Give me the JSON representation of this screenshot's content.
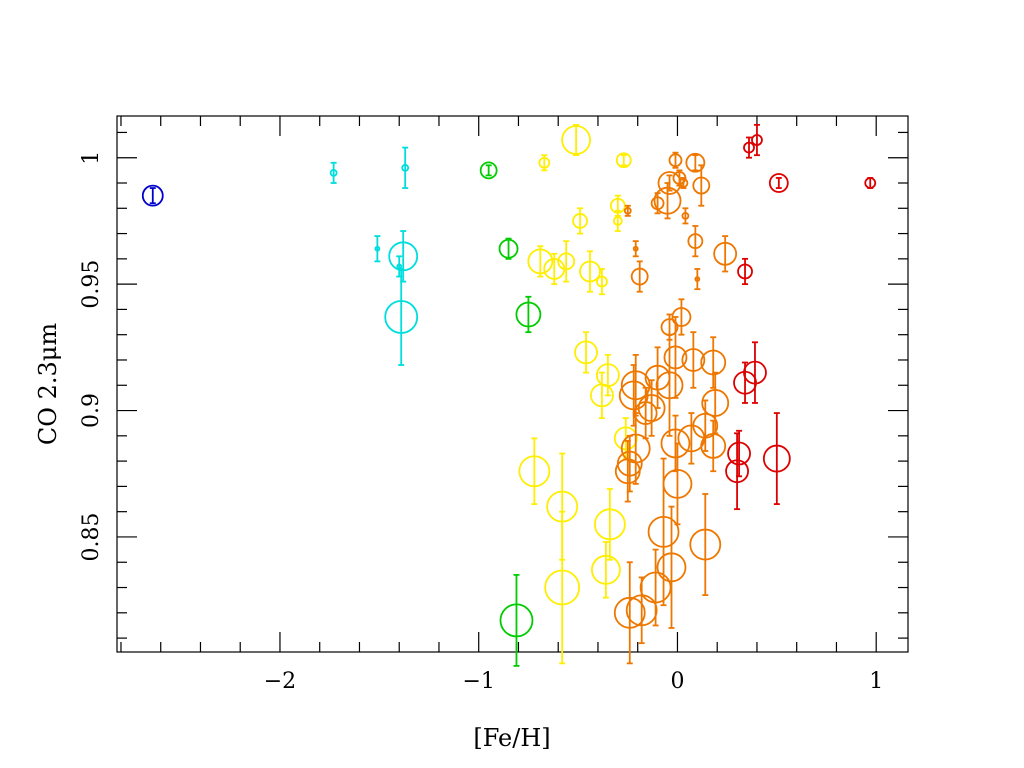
{
  "chart_data": {
    "type": "scatter",
    "xlabel": "[Fe/H]",
    "ylabel": "CO 2.3μm",
    "xlim": [
      -2.82,
      1.16
    ],
    "ylim": [
      0.8045,
      1.0165
    ],
    "x_ticks": [
      -2,
      -1,
      0,
      1
    ],
    "x_tick_labels": [
      "−2",
      "−1",
      "0",
      "1"
    ],
    "y_ticks": [
      0.85,
      0.9,
      0.95,
      1.0
    ],
    "y_tick_labels": [
      "0.85",
      "0.9",
      "0.95",
      "1"
    ],
    "grid": false,
    "legend": "none",
    "colors": {
      "blue": "#0000cc",
      "cyan": "#00dddd",
      "green": "#00cc00",
      "yellow": "#ffee00",
      "orange": "#ee7700",
      "red": "#dd0000"
    },
    "marker": "open-circle, size encodes uncertainty, vertical error bars",
    "points": [
      {
        "x": -2.64,
        "y": 0.985,
        "err": 0.003,
        "s": 10,
        "c": "blue"
      },
      {
        "x": -1.73,
        "y": 0.994,
        "err": 0.004,
        "s": 3,
        "c": "cyan"
      },
      {
        "x": -1.37,
        "y": 0.996,
        "err": 0.008,
        "s": 3,
        "c": "cyan"
      },
      {
        "x": -1.51,
        "y": 0.964,
        "err": 0.005,
        "s": 2,
        "c": "cyan"
      },
      {
        "x": -1.4,
        "y": 0.957,
        "err": 0.004,
        "s": 2,
        "c": "cyan"
      },
      {
        "x": -1.38,
        "y": 0.961,
        "err": 0.01,
        "s": 14,
        "c": "cyan"
      },
      {
        "x": -1.39,
        "y": 0.937,
        "err": 0.019,
        "s": 16,
        "c": "cyan"
      },
      {
        "x": -0.95,
        "y": 0.995,
        "err": 0.002,
        "s": 8,
        "c": "green"
      },
      {
        "x": -0.85,
        "y": 0.964,
        "err": 0.004,
        "s": 9,
        "c": "green"
      },
      {
        "x": -0.75,
        "y": 0.938,
        "err": 0.007,
        "s": 12,
        "c": "green"
      },
      {
        "x": -0.81,
        "y": 0.817,
        "err": 0.018,
        "s": 16,
        "c": "green"
      },
      {
        "x": -0.67,
        "y": 0.998,
        "err": 0.003,
        "s": 5,
        "c": "yellow"
      },
      {
        "x": -0.51,
        "y": 1.007,
        "err": 0.006,
        "s": 14,
        "c": "yellow"
      },
      {
        "x": -0.27,
        "y": 0.999,
        "err": 0.002,
        "s": 7,
        "c": "yellow"
      },
      {
        "x": -0.3,
        "y": 0.981,
        "err": 0.004,
        "s": 7,
        "c": "yellow"
      },
      {
        "x": -0.3,
        "y": 0.975,
        "err": 0.004,
        "s": 4,
        "c": "yellow"
      },
      {
        "x": -0.49,
        "y": 0.975,
        "err": 0.005,
        "s": 7,
        "c": "yellow"
      },
      {
        "x": -0.69,
        "y": 0.959,
        "err": 0.006,
        "s": 12,
        "c": "yellow"
      },
      {
        "x": -0.62,
        "y": 0.956,
        "err": 0.006,
        "s": 10,
        "c": "yellow"
      },
      {
        "x": -0.56,
        "y": 0.959,
        "err": 0.008,
        "s": 8,
        "c": "yellow"
      },
      {
        "x": -0.44,
        "y": 0.955,
        "err": 0.008,
        "s": 10,
        "c": "yellow"
      },
      {
        "x": -0.38,
        "y": 0.951,
        "err": 0.005,
        "s": 5,
        "c": "yellow"
      },
      {
        "x": -0.46,
        "y": 0.923,
        "err": 0.008,
        "s": 11,
        "c": "yellow"
      },
      {
        "x": -0.35,
        "y": 0.914,
        "err": 0.008,
        "s": 11,
        "c": "yellow"
      },
      {
        "x": -0.38,
        "y": 0.906,
        "err": 0.009,
        "s": 11,
        "c": "yellow"
      },
      {
        "x": -0.26,
        "y": 0.889,
        "err": 0.008,
        "s": 11,
        "c": "yellow"
      },
      {
        "x": -0.72,
        "y": 0.876,
        "err": 0.013,
        "s": 15,
        "c": "yellow"
      },
      {
        "x": -0.58,
        "y": 0.862,
        "err": 0.021,
        "s": 15,
        "c": "yellow"
      },
      {
        "x": -0.34,
        "y": 0.855,
        "err": 0.014,
        "s": 15,
        "c": "yellow"
      },
      {
        "x": -0.36,
        "y": 0.837,
        "err": 0.011,
        "s": 14,
        "c": "yellow"
      },
      {
        "x": -0.58,
        "y": 0.83,
        "err": 0.03,
        "s": 17,
        "c": "yellow"
      },
      {
        "x": -0.25,
        "y": 0.979,
        "err": 0.002,
        "s": 3,
        "c": "orange"
      },
      {
        "x": -0.01,
        "y": 0.999,
        "err": 0.003,
        "s": 6,
        "c": "orange"
      },
      {
        "x": 0.09,
        "y": 0.998,
        "err": 0.003,
        "s": 9,
        "c": "orange"
      },
      {
        "x": 0.01,
        "y": 0.992,
        "err": 0.003,
        "s": 6,
        "c": "orange"
      },
      {
        "x": 0.03,
        "y": 0.99,
        "err": 0.002,
        "s": 4,
        "c": "orange"
      },
      {
        "x": -0.04,
        "y": 0.99,
        "err": 0.003,
        "s": 11,
        "c": "orange"
      },
      {
        "x": 0.12,
        "y": 0.989,
        "err": 0.008,
        "s": 8,
        "c": "orange"
      },
      {
        "x": -0.1,
        "y": 0.982,
        "err": 0.004,
        "s": 6,
        "c": "orange"
      },
      {
        "x": -0.05,
        "y": 0.983,
        "err": 0.007,
        "s": 13,
        "c": "orange"
      },
      {
        "x": 0.04,
        "y": 0.977,
        "err": 0.003,
        "s": 3,
        "c": "orange"
      },
      {
        "x": 0.09,
        "y": 0.967,
        "err": 0.006,
        "s": 7,
        "c": "orange"
      },
      {
        "x": -0.21,
        "y": 0.964,
        "err": 0.003,
        "s": 2,
        "c": "orange"
      },
      {
        "x": 0.24,
        "y": 0.962,
        "err": 0.007,
        "s": 11,
        "c": "orange"
      },
      {
        "x": -0.19,
        "y": 0.953,
        "err": 0.006,
        "s": 8,
        "c": "orange"
      },
      {
        "x": 0.1,
        "y": 0.952,
        "err": 0.004,
        "s": 2,
        "c": "orange"
      },
      {
        "x": 0.02,
        "y": 0.937,
        "err": 0.007,
        "s": 9,
        "c": "orange"
      },
      {
        "x": -0.04,
        "y": 0.933,
        "err": 0.005,
        "s": 8,
        "c": "orange"
      },
      {
        "x": -0.01,
        "y": 0.921,
        "err": 0.016,
        "s": 11,
        "c": "orange"
      },
      {
        "x": 0.08,
        "y": 0.92,
        "err": 0.011,
        "s": 11,
        "c": "orange"
      },
      {
        "x": 0.18,
        "y": 0.919,
        "err": 0.01,
        "s": 12,
        "c": "orange"
      },
      {
        "x": -0.1,
        "y": 0.913,
        "err": 0.012,
        "s": 12,
        "c": "orange"
      },
      {
        "x": -0.04,
        "y": 0.91,
        "err": 0.02,
        "s": 13,
        "c": "orange"
      },
      {
        "x": -0.21,
        "y": 0.91,
        "err": 0.012,
        "s": 14,
        "c": "orange"
      },
      {
        "x": -0.22,
        "y": 0.906,
        "err": 0.012,
        "s": 14,
        "c": "orange"
      },
      {
        "x": 0.19,
        "y": 0.903,
        "err": 0.012,
        "s": 13,
        "c": "orange"
      },
      {
        "x": -0.13,
        "y": 0.901,
        "err": 0.011,
        "s": 13,
        "c": "orange"
      },
      {
        "x": -0.16,
        "y": 0.899,
        "err": 0.01,
        "s": 11,
        "c": "orange"
      },
      {
        "x": 0.14,
        "y": 0.894,
        "err": 0.01,
        "s": 12,
        "c": "orange"
      },
      {
        "x": 0.07,
        "y": 0.889,
        "err": 0.01,
        "s": 13,
        "c": "orange"
      },
      {
        "x": -0.01,
        "y": 0.887,
        "err": 0.011,
        "s": 14,
        "c": "orange"
      },
      {
        "x": 0.18,
        "y": 0.886,
        "err": 0.01,
        "s": 12,
        "c": "orange"
      },
      {
        "x": -0.21,
        "y": 0.885,
        "err": 0.014,
        "s": 14,
        "c": "orange"
      },
      {
        "x": -0.24,
        "y": 0.879,
        "err": 0.011,
        "s": 12,
        "c": "orange"
      },
      {
        "x": -0.25,
        "y": 0.876,
        "err": 0.012,
        "s": 12,
        "c": "orange"
      },
      {
        "x": 0.0,
        "y": 0.871,
        "err": 0.016,
        "s": 14,
        "c": "orange"
      },
      {
        "x": -0.07,
        "y": 0.852,
        "err": 0.029,
        "s": 15,
        "c": "orange"
      },
      {
        "x": 0.14,
        "y": 0.847,
        "err": 0.02,
        "s": 15,
        "c": "orange"
      },
      {
        "x": -0.03,
        "y": 0.838,
        "err": 0.024,
        "s": 14,
        "c": "orange"
      },
      {
        "x": -0.11,
        "y": 0.83,
        "err": 0.015,
        "s": 15,
        "c": "orange"
      },
      {
        "x": -0.24,
        "y": 0.82,
        "err": 0.02,
        "s": 15,
        "c": "orange"
      },
      {
        "x": -0.18,
        "y": 0.821,
        "err": 0.013,
        "s": 15,
        "c": "orange"
      },
      {
        "x": 0.4,
        "y": 1.007,
        "err": 0.006,
        "s": 5,
        "c": "red"
      },
      {
        "x": 0.36,
        "y": 1.004,
        "err": 0.004,
        "s": 5,
        "c": "red"
      },
      {
        "x": 0.51,
        "y": 0.99,
        "err": 0.002,
        "s": 9,
        "c": "red"
      },
      {
        "x": 0.97,
        "y": 0.99,
        "err": 0.002,
        "s": 5,
        "c": "red"
      },
      {
        "x": 0.34,
        "y": 0.955,
        "err": 0.005,
        "s": 7,
        "c": "red"
      },
      {
        "x": 0.34,
        "y": 0.911,
        "err": 0.008,
        "s": 11,
        "c": "red"
      },
      {
        "x": 0.39,
        "y": 0.915,
        "err": 0.012,
        "s": 11,
        "c": "red"
      },
      {
        "x": 0.31,
        "y": 0.883,
        "err": 0.009,
        "s": 11,
        "c": "red"
      },
      {
        "x": 0.3,
        "y": 0.876,
        "err": 0.015,
        "s": 11,
        "c": "red"
      },
      {
        "x": 0.5,
        "y": 0.881,
        "err": 0.018,
        "s": 13,
        "c": "red"
      }
    ]
  }
}
